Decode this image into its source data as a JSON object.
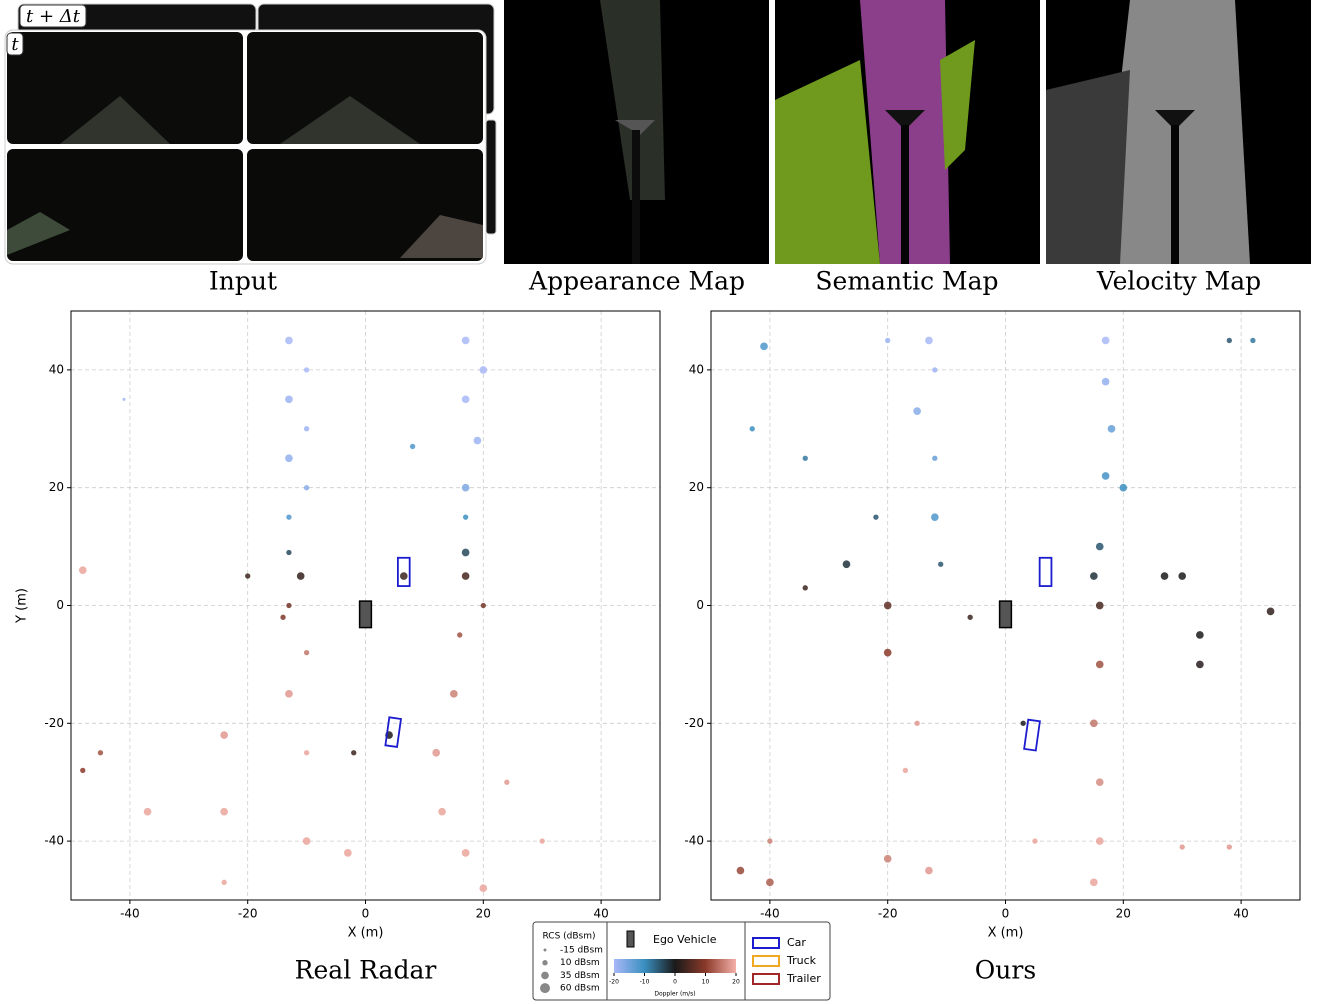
{
  "panels": [
    {
      "label": "Input"
    },
    {
      "label": "Appearance Map"
    },
    {
      "label": "Semantic Map"
    },
    {
      "label": "Velocity Map"
    }
  ],
  "input_frames": [
    "t + Δt",
    "t"
  ],
  "chart_data": [
    {
      "type": "scatter",
      "title": "Real Radar",
      "x_label": "X (m)",
      "y_label": "Y (m)",
      "xlim": [
        -50,
        50
      ],
      "ylim": [
        -50,
        50
      ],
      "xticks": [
        -40,
        -20,
        0,
        20,
        40
      ],
      "yticks": [
        -40,
        -20,
        0,
        20,
        40
      ],
      "grid": true,
      "points": {
        "x": [
          -13,
          -10,
          -13,
          -10,
          -13,
          -10,
          -13,
          -13,
          -11,
          -13,
          -14,
          -10,
          -13,
          -10,
          -10,
          -24,
          -24,
          -24,
          -37,
          -45,
          -48,
          -48,
          -41,
          17,
          20,
          17,
          19,
          17,
          17,
          17,
          17,
          20,
          16,
          15,
          12,
          13,
          17,
          20,
          6.5,
          8,
          4,
          -2,
          -20,
          -3,
          24,
          30
        ],
        "y": [
          45,
          40,
          35,
          30,
          25,
          20,
          15,
          9,
          5,
          0,
          -2,
          -8,
          -15,
          -25,
          -40,
          -22,
          -35,
          -47,
          -35,
          -25,
          -28,
          6,
          35,
          45,
          40,
          35,
          28,
          20,
          15,
          9,
          5,
          0,
          -5,
          -15,
          -25,
          -35,
          -42,
          -48,
          5,
          27,
          -22,
          -25,
          5,
          -42,
          -30,
          -40
        ],
        "doppler": [
          -20,
          -20,
          -19,
          -19,
          -18,
          -17,
          -12,
          -4,
          2,
          8,
          9,
          15,
          18,
          19,
          19,
          18,
          19,
          19,
          19,
          12,
          10,
          19,
          -19,
          -20,
          -20,
          -20,
          -19,
          -16,
          -10,
          -4,
          4,
          8,
          12,
          16,
          18,
          19,
          19,
          19,
          3,
          -12,
          0,
          3,
          3,
          19,
          18,
          19
        ],
        "rcs": [
          35,
          10,
          35,
          10,
          35,
          10,
          10,
          10,
          35,
          10,
          10,
          10,
          35,
          10,
          35,
          35,
          35,
          10,
          35,
          10,
          10,
          35,
          -15,
          35,
          35,
          35,
          35,
          35,
          10,
          35,
          35,
          10,
          10,
          35,
          35,
          35,
          35,
          35,
          35,
          10,
          35,
          10,
          10,
          35,
          10,
          10
        ]
      },
      "boxes": [
        {
          "x": 6.5,
          "y": 5.7,
          "w": 2,
          "h": 4.8,
          "angle": 0,
          "color": "#1c1ccf"
        },
        {
          "x": 4.7,
          "y": -21.5,
          "w": 2,
          "h": 4.8,
          "angle": 8,
          "color": "#1c1ccf"
        }
      ],
      "ego": {
        "x": 0,
        "y": -1.5,
        "w": 2,
        "h": 4.5
      }
    },
    {
      "type": "scatter",
      "title": "Ours",
      "x_label": "X (m)",
      "xlim": [
        -50,
        50
      ],
      "ylim": [
        -50,
        50
      ],
      "xticks": [
        -40,
        -20,
        0,
        20,
        40
      ],
      "yticks": [
        -40,
        -20,
        0,
        20,
        40
      ],
      "grid": true,
      "points": {
        "x": [
          -13,
          -12,
          -15,
          -12,
          -12,
          -11,
          -20,
          -20,
          -15,
          -17,
          -41,
          -43,
          -34,
          -22,
          -27,
          -34,
          -40,
          -45,
          -20,
          -13,
          -40,
          17,
          17,
          18,
          17,
          20,
          16,
          15,
          16,
          16,
          15,
          16,
          16,
          15,
          33,
          33,
          30,
          45,
          30,
          38,
          42,
          -6,
          3,
          5,
          27,
          38,
          -20
        ],
        "y": [
          45,
          40,
          33,
          25,
          15,
          7,
          0,
          -8,
          -20,
          -28,
          44,
          30,
          25,
          15,
          7,
          3,
          -47,
          -45,
          -43,
          -45,
          -40,
          45,
          38,
          30,
          22,
          20,
          10,
          5,
          0,
          -10,
          -20,
          -30,
          -40,
          -47,
          -5,
          -10,
          5,
          -1,
          -41,
          -41,
          45,
          -2,
          -20,
          -40,
          5,
          45,
          45
        ],
        "doppler": [
          -20,
          -19,
          -17,
          -14,
          -12,
          -5,
          6,
          10,
          18,
          19,
          -12,
          -10,
          -8,
          -5,
          -2,
          3,
          13,
          11,
          16,
          18,
          16,
          -20,
          -18,
          -14,
          -11,
          -10,
          -5,
          -2,
          4,
          12,
          15,
          17,
          19,
          19,
          0,
          1,
          0,
          2,
          18,
          18,
          -8,
          3,
          0,
          19,
          0,
          -5,
          -19
        ],
        "rcs": [
          35,
          10,
          35,
          10,
          35,
          10,
          35,
          35,
          10,
          10,
          35,
          10,
          10,
          10,
          35,
          10,
          35,
          35,
          35,
          35,
          10,
          35,
          35,
          35,
          35,
          35,
          35,
          35,
          35,
          35,
          35,
          35,
          35,
          35,
          35,
          35,
          35,
          35,
          10,
          10,
          10,
          10,
          10,
          10,
          35,
          10,
          10
        ]
      },
      "boxes": [
        {
          "x": 6.8,
          "y": 5.7,
          "w": 2,
          "h": 4.8,
          "angle": 0,
          "color": "#1c1ccf"
        },
        {
          "x": 4.5,
          "y": -22,
          "w": 2,
          "h": 5,
          "angle": 8,
          "color": "#1c1ccf"
        }
      ],
      "ego": {
        "x": 0,
        "y": -1.5,
        "w": 2,
        "h": 4.5
      }
    }
  ],
  "legend": {
    "rcs_title": "RCS (dBsm)",
    "rcs": [
      {
        "value": -15,
        "label": "-15 dBsm"
      },
      {
        "value": 10,
        "label": "10 dBsm"
      },
      {
        "value": 35,
        "label": "35 dBsm"
      },
      {
        "value": 60,
        "label": "60 dBsm"
      }
    ],
    "ego": "Ego Vehicle",
    "colorbar_label": "Doppler (m/s)",
    "colorbar_ticks": [
      -20,
      -10,
      0,
      10,
      20
    ],
    "boxes": [
      {
        "label": "Car",
        "color": "#1c1ccf"
      },
      {
        "label": "Truck",
        "color": "#f0a820"
      },
      {
        "label": "Trailer",
        "color": "#a02828"
      }
    ]
  }
}
